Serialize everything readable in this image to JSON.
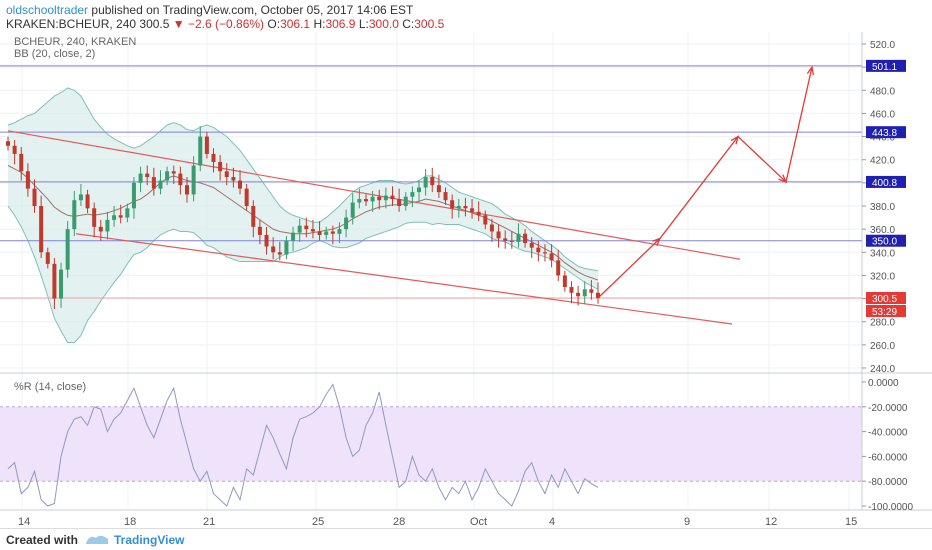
{
  "header": {
    "author": "oldschooltrader",
    "published": "published on TradingView.com, October 05, 2017 14:06 EST",
    "symbol_line": "KRAKEN:BCHEUR, 240",
    "last": "300.5",
    "arrow": "▼",
    "change": "−2.6 (−0.86%)",
    "o_label": "O:",
    "o_val": "306.1",
    "h_label": "H:",
    "h_val": "306.9",
    "l_label": "L:",
    "l_val": "300.0",
    "c_label": "C:",
    "c_val": "300.5"
  },
  "legend": {
    "symbol": "BCHEUR, 240, KRAKEN",
    "bb": "BB (20, close, 2)",
    "wr": "%R (14, close)"
  },
  "footer": {
    "created": "Created with",
    "brand": "TradingView"
  },
  "colors": {
    "up": "#3a9b6f",
    "down": "#c0392b",
    "bb_fill": "#d7ede9",
    "bb_band": "#7fc0b6",
    "bb_basis": "#a06d6d",
    "trend": "#e55a5a",
    "hline": "#8080d8",
    "wr_line": "#9197c2",
    "wr_fill": "#efe3fb",
    "arrow": "#e53935",
    "last_price": "#e53935"
  },
  "chart_data": [
    {
      "type": "candlestick",
      "title": "BCHEUR, 240, KRAKEN",
      "indicator": "BB (20, close, 2)",
      "x_tick_labels": [
        "14",
        "18",
        "21",
        "25",
        "28",
        "Oct",
        "4",
        "9",
        "12",
        "15"
      ],
      "y_tick_labels": [
        "520.0",
        "500.0",
        "480.0",
        "460.0",
        "440.0",
        "420.0",
        "400.0",
        "380.0",
        "360.0",
        "340.0",
        "320.0",
        "300.0",
        "280.0",
        "260.0",
        "240.0"
      ],
      "ylim": [
        240,
        525
      ],
      "horizontal_levels": [
        {
          "label": "501.1",
          "value": 501.1
        },
        {
          "label": "443.8",
          "value": 443.8
        },
        {
          "label": "400.8",
          "value": 400.8
        },
        {
          "label": "350.0",
          "value": 350.0
        }
      ],
      "last_price": {
        "label": "300.5",
        "value": 300.5,
        "countdown": "53:29"
      },
      "close": [
        432,
        425,
        410,
        395,
        380,
        340,
        330,
        300,
        325,
        360,
        385,
        390,
        378,
        362,
        358,
        368,
        372,
        370,
        378,
        400,
        408,
        405,
        395,
        402,
        410,
        408,
        398,
        390,
        415,
        440,
        425,
        418,
        410,
        405,
        402,
        395,
        380,
        362,
        355,
        345,
        340,
        338,
        350,
        357,
        363,
        360,
        358,
        355,
        358,
        356,
        360,
        370,
        383,
        386,
        384,
        388,
        385,
        389,
        386,
        380,
        388,
        392,
        396,
        405,
        398,
        392,
        385,
        378,
        380,
        378,
        375,
        372,
        364,
        358,
        352,
        350,
        349,
        356,
        348,
        344,
        340,
        339,
        333,
        320,
        310,
        305,
        302,
        308,
        305,
        300.5
      ],
      "bb_upper": [
        450,
        452,
        455,
        458,
        460,
        465,
        470,
        475,
        478,
        482,
        480,
        475,
        465,
        455,
        448,
        442,
        438,
        435,
        432,
        430,
        432,
        436,
        440,
        445,
        450,
        452,
        450,
        446,
        445,
        448,
        450,
        448,
        444,
        440,
        434,
        428,
        420,
        412,
        404,
        396,
        388,
        380,
        375,
        372,
        370,
        368,
        366,
        366,
        370,
        375,
        380,
        386,
        392,
        396,
        398,
        400,
        402,
        402,
        402,
        400,
        399,
        400,
        402,
        406,
        406,
        403,
        400,
        396,
        392,
        390,
        388,
        386,
        384,
        382,
        378,
        373,
        370,
        367,
        363,
        358,
        354,
        350,
        346,
        342,
        336,
        332,
        328,
        326,
        325,
        324
      ],
      "bb_basis": [
        415,
        412,
        409,
        404,
        398,
        392,
        386,
        379,
        375,
        372,
        371,
        372,
        373,
        372,
        373,
        374,
        376,
        378,
        381,
        384,
        386,
        390,
        395,
        400,
        404,
        406,
        404,
        402,
        401,
        400,
        398,
        396,
        392,
        388,
        384,
        380,
        376,
        372,
        368,
        364,
        360,
        358,
        357,
        356,
        356,
        356,
        357,
        358,
        359,
        360,
        362,
        365,
        369,
        372,
        375,
        377,
        379,
        380,
        381,
        381,
        382,
        383,
        384,
        386,
        385,
        384,
        382,
        380,
        378,
        376,
        374,
        372,
        370,
        367,
        364,
        361,
        358,
        355,
        352,
        349,
        346,
        343,
        340,
        336,
        331,
        327,
        323,
        320,
        318,
        316
      ],
      "bb_lower": [
        380,
        372,
        362,
        350,
        336,
        320,
        302,
        283,
        272,
        262,
        262,
        268,
        281,
        289,
        298,
        306,
        314,
        321,
        330,
        338,
        340,
        344,
        350,
        355,
        358,
        360,
        358,
        358,
        357,
        352,
        346,
        344,
        340,
        336,
        334,
        332,
        332,
        332,
        332,
        332,
        332,
        336,
        339,
        340,
        342,
        344,
        348,
        350,
        348,
        345,
        344,
        344,
        346,
        348,
        352,
        354,
        356,
        358,
        360,
        362,
        365,
        366,
        366,
        366,
        364,
        365,
        364,
        364,
        364,
        362,
        360,
        358,
        356,
        352,
        350,
        349,
        346,
        343,
        341,
        340,
        338,
        336,
        334,
        330,
        326,
        322,
        318,
        314,
        311,
        308
      ]
    },
    {
      "type": "line",
      "title": "%R (14, close)",
      "y_tick_labels": [
        "0.0000",
        "-20.0000",
        "-40.0000",
        "-60.0000",
        "-80.0000",
        "-100.0000"
      ],
      "ylim": [
        -100,
        0
      ],
      "band": [
        -80,
        -20
      ],
      "values": [
        -70,
        -65,
        -90,
        -85,
        -72,
        -95,
        -100,
        -98,
        -60,
        -40,
        -30,
        -28,
        -35,
        -20,
        -22,
        -40,
        -30,
        -25,
        -15,
        -5,
        -20,
        -35,
        -45,
        -30,
        -15,
        -5,
        -30,
        -50,
        -70,
        -80,
        -72,
        -90,
        -95,
        -100,
        -85,
        -95,
        -70,
        -75,
        -55,
        -35,
        -45,
        -58,
        -70,
        -45,
        -30,
        -28,
        -25,
        -20,
        -10,
        -2,
        -20,
        -45,
        -60,
        -55,
        -35,
        -25,
        -8,
        -35,
        -60,
        -85,
        -80,
        -60,
        -75,
        -80,
        -70,
        -85,
        -95,
        -85,
        -90,
        -80,
        -95,
        -85,
        -70,
        -80,
        -90,
        -95,
        -100,
        -88,
        -72,
        -65,
        -80,
        -90,
        -75,
        -85,
        -70,
        -80,
        -90,
        -78,
        -82,
        -85
      ]
    }
  ]
}
